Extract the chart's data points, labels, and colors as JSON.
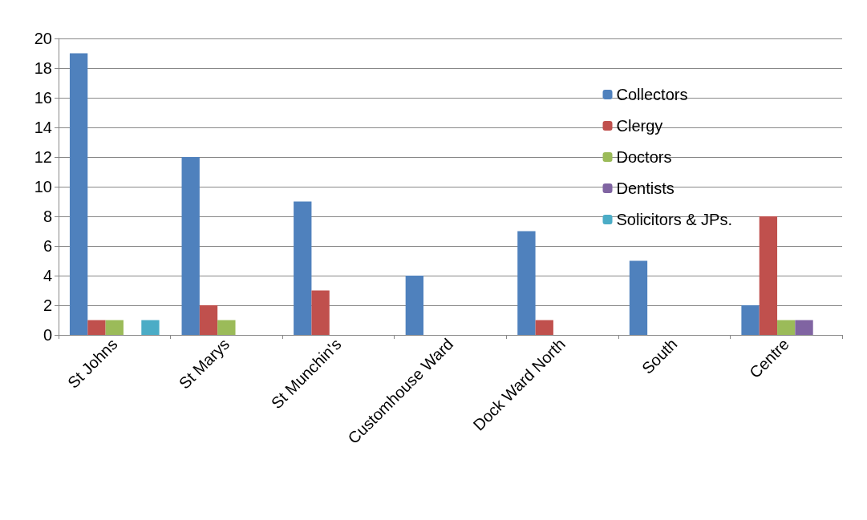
{
  "chart_data": {
    "type": "bar",
    "categories": [
      "St Johns",
      "St Marys",
      "St Munchin's",
      "Customhouse Ward",
      "Dock Ward North",
      "South",
      "Centre"
    ],
    "series": [
      {
        "name": "Collectors",
        "color": "#4f81bd",
        "values": [
          19,
          12,
          9,
          4,
          7,
          5,
          2
        ]
      },
      {
        "name": "Clergy",
        "color": "#c0504d",
        "values": [
          1,
          2,
          3,
          0,
          1,
          0,
          8
        ]
      },
      {
        "name": "Doctors",
        "color": "#9bbb59",
        "values": [
          1,
          1,
          0,
          0,
          0,
          0,
          1
        ]
      },
      {
        "name": "Dentists",
        "color": "#8064a2",
        "values": [
          0,
          0,
          0,
          0,
          0,
          0,
          1
        ]
      },
      {
        "name": "Solicitors & JPs.",
        "color": "#4bacc6",
        "values": [
          1,
          0,
          0,
          0,
          0,
          0,
          0
        ]
      }
    ],
    "ylim": [
      0,
      20
    ],
    "yticks": [
      0,
      2,
      4,
      6,
      8,
      10,
      12,
      14,
      16,
      18,
      20
    ],
    "grid": "y",
    "legend": "right"
  }
}
